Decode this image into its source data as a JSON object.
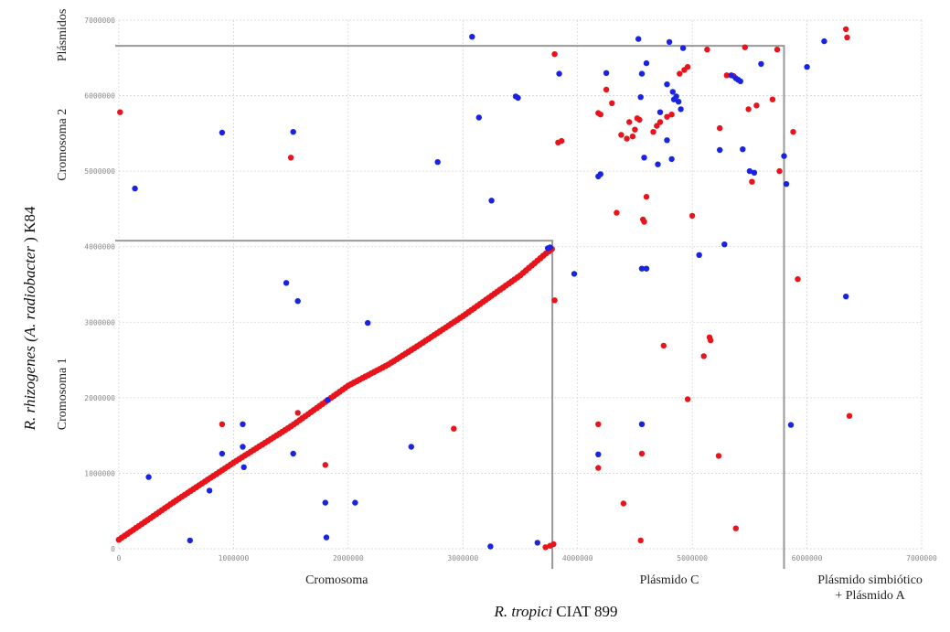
{
  "chart_data": {
    "type": "scatter",
    "xlabel": {
      "italic": "R. tropici",
      "rest": " CIAT 899"
    },
    "ylabel": {
      "pre": "R. rhizogenes (",
      "italic": "A. radiobacter",
      "post": " ) K84"
    },
    "xlim": [
      0,
      7000000
    ],
    "ylim": [
      0,
      7000000
    ],
    "x_ticks": [
      "0",
      "1000000",
      "2000000",
      "3000000",
      "4000000",
      "5000000",
      "6000000",
      "7000000"
    ],
    "y_ticks": [
      "0",
      "1000000",
      "2000000",
      "3000000",
      "4000000",
      "5000000",
      "6000000",
      "7000000"
    ],
    "grid": true,
    "x_segments": [
      {
        "label_lines": [
          "Cromosoma"
        ],
        "center": 1900000
      },
      {
        "label_lines": [
          "Plásmido C"
        ],
        "center": 4800000
      },
      {
        "label_lines": [
          "Plásmido simbiótico",
          "+ Plásmido A"
        ],
        "center": 6550000
      }
    ],
    "y_segments": [
      {
        "label": "Cromosoma 1",
        "center": 2050000
      },
      {
        "label": "Cromosoma 2",
        "center": 5350000
      },
      {
        "label": "Plásmidos",
        "center": 6800000
      }
    ],
    "boundaries": {
      "x_chrom_end": 3780000,
      "y_chrom1_end": 4080000,
      "x_plasmidC_end": 5800000,
      "y_chrom2_end": 6660000
    },
    "colors": {
      "red": "#e8141c",
      "blue": "#1a24e0"
    },
    "diagonal": [
      [
        0,
        120000
      ],
      [
        500000,
        640000
      ],
      [
        1000000,
        1140000
      ],
      [
        1500000,
        1620000
      ],
      [
        2000000,
        2160000
      ],
      [
        2350000,
        2440000
      ],
      [
        2600000,
        2680000
      ],
      [
        3000000,
        3080000
      ],
      [
        3500000,
        3620000
      ],
      [
        3700000,
        3880000
      ],
      [
        3800000,
        4000000
      ]
    ],
    "series": [
      {
        "color": "red",
        "points": [
          [
            10000,
            5780000
          ],
          [
            1500000,
            5180000
          ],
          [
            900000,
            1650000
          ],
          [
            1800000,
            1110000
          ],
          [
            2920000,
            1590000
          ],
          [
            1560000,
            1800000
          ],
          [
            3800000,
            6550000
          ],
          [
            3830000,
            5380000
          ],
          [
            3860000,
            5400000
          ],
          [
            3800000,
            3290000
          ],
          [
            3720000,
            20000
          ],
          [
            3760000,
            40000
          ],
          [
            3790000,
            60000
          ],
          [
            4180000,
            5770000
          ],
          [
            4200000,
            5750000
          ],
          [
            4250000,
            6080000
          ],
          [
            4340000,
            4450000
          ],
          [
            4380000,
            5480000
          ],
          [
            4430000,
            5430000
          ],
          [
            4480000,
            5460000
          ],
          [
            4500000,
            5550000
          ],
          [
            4520000,
            5700000
          ],
          [
            4540000,
            5680000
          ],
          [
            4570000,
            4360000
          ],
          [
            4580000,
            4330000
          ],
          [
            4600000,
            4660000
          ],
          [
            4660000,
            5520000
          ],
          [
            4690000,
            5600000
          ],
          [
            4720000,
            5650000
          ],
          [
            4780000,
            5720000
          ],
          [
            4820000,
            5750000
          ],
          [
            4890000,
            6290000
          ],
          [
            4930000,
            6340000
          ],
          [
            4960000,
            6380000
          ],
          [
            5000000,
            4410000
          ],
          [
            4960000,
            1980000
          ],
          [
            4750000,
            2690000
          ],
          [
            5100000,
            2550000
          ],
          [
            5150000,
            2800000
          ],
          [
            5160000,
            2760000
          ],
          [
            5130000,
            6610000
          ],
          [
            5230000,
            1230000
          ],
          [
            5240000,
            5570000
          ],
          [
            5300000,
            6270000
          ],
          [
            5360000,
            6260000
          ],
          [
            5380000,
            270000
          ],
          [
            5460000,
            6640000
          ],
          [
            5490000,
            5820000
          ],
          [
            5520000,
            4860000
          ],
          [
            5560000,
            5870000
          ],
          [
            5700000,
            5950000
          ],
          [
            5740000,
            6610000
          ],
          [
            5760000,
            5000000
          ],
          [
            5880000,
            5520000
          ],
          [
            5920000,
            3570000
          ],
          [
            6340000,
            6880000
          ],
          [
            6350000,
            6770000
          ],
          [
            6370000,
            1760000
          ],
          [
            4180000,
            1070000
          ],
          [
            4180000,
            1650000
          ],
          [
            4560000,
            1260000
          ],
          [
            4400000,
            600000
          ],
          [
            4550000,
            110000
          ],
          [
            4450000,
            5650000
          ],
          [
            4300000,
            5900000
          ]
        ]
      },
      {
        "color": "blue",
        "points": [
          [
            140000,
            4770000
          ],
          [
            900000,
            5510000
          ],
          [
            1520000,
            5520000
          ],
          [
            2780000,
            5120000
          ],
          [
            3080000,
            6780000
          ],
          [
            3140000,
            5710000
          ],
          [
            3250000,
            4610000
          ],
          [
            3460000,
            5990000
          ],
          [
            3480000,
            5970000
          ],
          [
            1460000,
            3520000
          ],
          [
            1560000,
            3280000
          ],
          [
            2170000,
            2990000
          ],
          [
            1820000,
            1970000
          ],
          [
            1520000,
            1260000
          ],
          [
            2550000,
            1350000
          ],
          [
            900000,
            1260000
          ],
          [
            1080000,
            1650000
          ],
          [
            1080000,
            1350000
          ],
          [
            1090000,
            1080000
          ],
          [
            790000,
            770000
          ],
          [
            260000,
            950000
          ],
          [
            620000,
            110000
          ],
          [
            1800000,
            610000
          ],
          [
            1810000,
            150000
          ],
          [
            2060000,
            610000
          ],
          [
            3240000,
            30000
          ],
          [
            3650000,
            80000
          ],
          [
            3760000,
            3990000
          ],
          [
            3740000,
            3980000
          ],
          [
            3970000,
            3640000
          ],
          [
            3840000,
            6290000
          ],
          [
            4180000,
            4930000
          ],
          [
            4200000,
            4960000
          ],
          [
            4250000,
            6300000
          ],
          [
            4530000,
            6750000
          ],
          [
            4550000,
            5980000
          ],
          [
            4560000,
            6290000
          ],
          [
            4580000,
            5180000
          ],
          [
            4600000,
            6430000
          ],
          [
            4560000,
            3710000
          ],
          [
            4600000,
            3710000
          ],
          [
            4700000,
            5090000
          ],
          [
            4720000,
            5780000
          ],
          [
            4780000,
            6150000
          ],
          [
            4780000,
            5410000
          ],
          [
            4800000,
            6710000
          ],
          [
            4830000,
            6050000
          ],
          [
            4840000,
            5950000
          ],
          [
            4860000,
            5990000
          ],
          [
            4880000,
            5920000
          ],
          [
            4900000,
            5820000
          ],
          [
            4920000,
            6630000
          ],
          [
            4820000,
            5160000
          ],
          [
            5060000,
            3890000
          ],
          [
            5280000,
            4030000
          ],
          [
            5240000,
            5280000
          ],
          [
            5340000,
            6270000
          ],
          [
            5380000,
            6230000
          ],
          [
            5400000,
            6210000
          ],
          [
            5420000,
            6190000
          ],
          [
            5440000,
            5290000
          ],
          [
            5500000,
            5000000
          ],
          [
            5540000,
            4980000
          ],
          [
            5600000,
            6420000
          ],
          [
            5800000,
            5200000
          ],
          [
            5820000,
            4830000
          ],
          [
            5860000,
            1640000
          ],
          [
            6000000,
            6380000
          ],
          [
            6150000,
            6720000
          ],
          [
            6340000,
            3340000
          ],
          [
            4560000,
            1650000
          ],
          [
            4180000,
            1250000
          ]
        ]
      }
    ]
  }
}
